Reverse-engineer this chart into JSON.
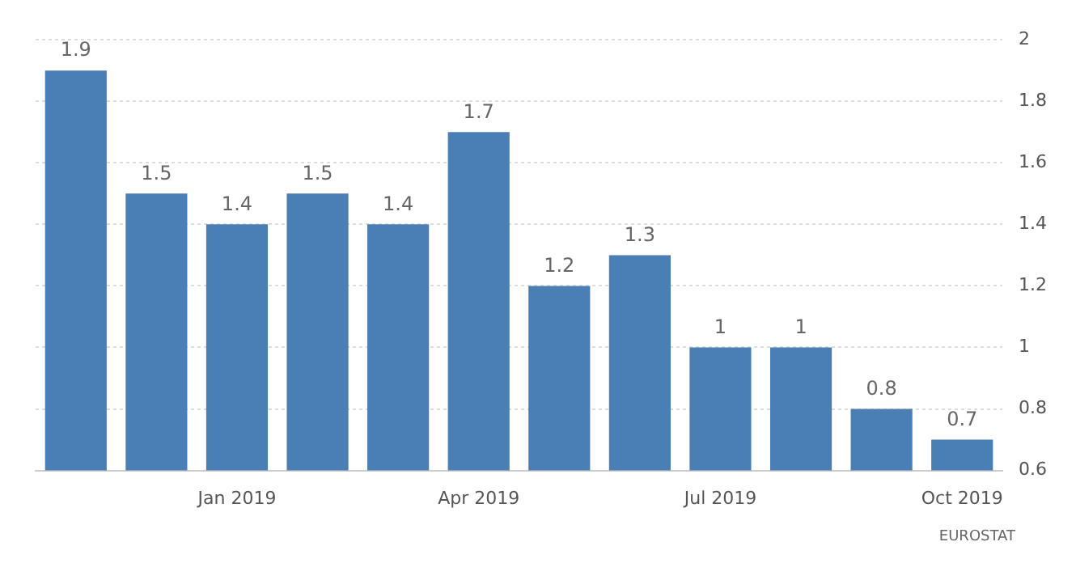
{
  "chart_data": {
    "type": "bar",
    "categories": [
      null,
      null,
      "Jan 2019",
      null,
      null,
      "Apr 2019",
      null,
      null,
      "Jul 2019",
      null,
      null,
      "Oct 2019"
    ],
    "values": [
      1.9,
      1.5,
      1.4,
      1.5,
      1.4,
      1.7,
      1.2,
      1.3,
      1,
      1,
      0.8,
      0.7
    ],
    "color": "#4a7fb5",
    "ylim": [
      0.6,
      2
    ],
    "yticks": [
      0.6,
      0.8,
      1,
      1.2,
      1.4,
      1.6,
      1.8,
      2
    ],
    "grid": "y",
    "data_labels": true,
    "legend": false,
    "annotations": [
      "EUROSTAT"
    ]
  }
}
